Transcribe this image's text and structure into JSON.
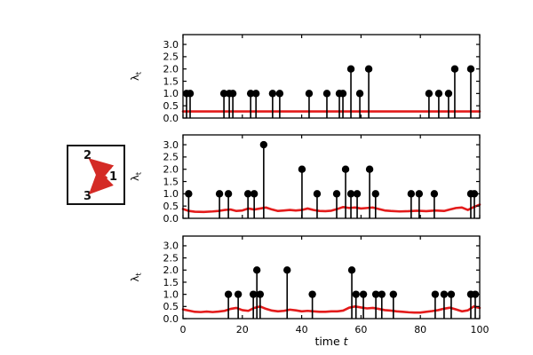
{
  "figure": {
    "background": "#ffffff",
    "axis_color": "#000000",
    "xlabel_text": "time ",
    "xlabel_var": "t",
    "ylabel_text": "λ",
    "ylabel_sub": "t"
  },
  "network_diagram": {
    "nodes": [
      {
        "id": "2"
      },
      {
        "id": "1"
      },
      {
        "id": "3"
      }
    ],
    "edges": [
      {
        "from": "1",
        "to": "2"
      },
      {
        "from": "1",
        "to": "3"
      }
    ],
    "arrow_color": "#d42b26"
  },
  "chart_data": [
    {
      "type": "stem",
      "name": "intensity-panel-1",
      "ylabel": "λ_t",
      "xlim": [
        0,
        100
      ],
      "ylim": [
        0,
        3.4
      ],
      "yticks": [
        "0.0",
        "0.5",
        "1.0",
        "1.5",
        "2.0",
        "2.5",
        "3.0"
      ],
      "ytick_values": [
        0,
        0.5,
        1,
        1.5,
        2,
        2.5,
        3
      ],
      "xticks": [
        "0",
        "20",
        "40",
        "60",
        "80",
        "100"
      ],
      "xtick_values": [
        0,
        20,
        40,
        60,
        80,
        100
      ],
      "show_xtick_labels": false,
      "stem_color": "#000000",
      "intensity_color": "#e31b1b",
      "events": {
        "x": [
          1.2,
          2.4,
          13.8,
          15.6,
          16.8,
          22.8,
          24.6,
          30.2,
          32.6,
          42.5,
          48.5,
          52.7,
          53.9,
          56.6,
          59.6,
          62.6,
          82.9,
          86.2,
          89.5,
          91.6,
          97.0
        ],
        "y": [
          1,
          1,
          1,
          1,
          1,
          1,
          1,
          1,
          1,
          1,
          1,
          1,
          1,
          2,
          1,
          2,
          1,
          1,
          1,
          2,
          2
        ]
      },
      "intensity": {
        "x": [
          0,
          100
        ],
        "y": [
          0.27,
          0.27
        ]
      }
    },
    {
      "type": "stem",
      "name": "intensity-panel-2",
      "ylabel": "λ_t",
      "xlim": [
        0,
        100
      ],
      "ylim": [
        0,
        3.4
      ],
      "yticks": [
        "0.0",
        "0.5",
        "1.0",
        "1.5",
        "2.0",
        "2.5",
        "3.0"
      ],
      "ytick_values": [
        0,
        0.5,
        1,
        1.5,
        2,
        2.5,
        3
      ],
      "xticks": [
        "0",
        "20",
        "40",
        "60",
        "80",
        "100"
      ],
      "xtick_values": [
        0,
        20,
        40,
        60,
        80,
        100
      ],
      "show_xtick_labels": false,
      "stem_color": "#000000",
      "intensity_color": "#e31b1b",
      "events": {
        "x": [
          1.9,
          12.3,
          15.3,
          21.9,
          24.0,
          27.2,
          40.1,
          45.2,
          51.8,
          54.8,
          56.6,
          58.7,
          62.9,
          64.9,
          76.9,
          79.6,
          84.7,
          97.0,
          98.2
        ],
        "y": [
          1,
          1,
          1,
          1,
          1,
          3,
          2,
          1,
          1,
          2,
          1,
          1,
          2,
          1,
          1,
          1,
          1,
          1,
          1
        ]
      },
      "intensity": {
        "x": [
          0,
          2,
          4,
          7,
          10,
          12,
          14,
          16,
          18,
          20,
          22,
          24,
          26,
          28,
          30,
          32,
          34,
          36,
          38,
          40,
          42,
          44,
          46,
          48,
          50,
          52,
          54,
          56,
          58,
          60,
          62,
          64,
          66,
          68,
          70,
          73,
          76,
          79,
          82,
          85,
          88,
          90,
          92,
          94,
          96,
          98,
          100
        ],
        "y": [
          0.38,
          0.3,
          0.27,
          0.26,
          0.28,
          0.3,
          0.34,
          0.36,
          0.3,
          0.32,
          0.4,
          0.36,
          0.4,
          0.44,
          0.36,
          0.3,
          0.32,
          0.34,
          0.32,
          0.34,
          0.4,
          0.34,
          0.3,
          0.29,
          0.31,
          0.38,
          0.46,
          0.42,
          0.44,
          0.4,
          0.42,
          0.44,
          0.38,
          0.32,
          0.3,
          0.28,
          0.29,
          0.31,
          0.29,
          0.32,
          0.3,
          0.36,
          0.42,
          0.44,
          0.34,
          0.46,
          0.56
        ]
      }
    },
    {
      "type": "stem",
      "name": "intensity-panel-3",
      "ylabel": "λ_t",
      "xlim": [
        0,
        100
      ],
      "ylim": [
        0,
        3.4
      ],
      "yticks": [
        "0.0",
        "0.5",
        "1.0",
        "1.5",
        "2.0",
        "2.5",
        "3.0"
      ],
      "ytick_values": [
        0,
        0.5,
        1,
        1.5,
        2,
        2.5,
        3
      ],
      "xticks": [
        "0",
        "20",
        "40",
        "60",
        "80",
        "100"
      ],
      "xtick_values": [
        0,
        20,
        40,
        60,
        80,
        100
      ],
      "show_xtick_labels": true,
      "stem_color": "#000000",
      "intensity_color": "#e31b1b",
      "events": {
        "x": [
          15.3,
          18.6,
          23.7,
          24.9,
          26.0,
          35.1,
          43.6,
          56.9,
          58.3,
          60.8,
          65.0,
          67.0,
          70.9,
          85.0,
          88.0,
          90.4,
          97.0,
          98.5
        ],
        "y": [
          1,
          1,
          1,
          2,
          1,
          2,
          1,
          2,
          1,
          1,
          1,
          1,
          1,
          1,
          1,
          1,
          1,
          1
        ]
      },
      "intensity": {
        "x": [
          0,
          2,
          4,
          6,
          8,
          10,
          12,
          14,
          16,
          18,
          20,
          22,
          24,
          26,
          28,
          30,
          32,
          34,
          36,
          38,
          40,
          42,
          44,
          46,
          48,
          50,
          52,
          54,
          56,
          58,
          60,
          62,
          64,
          66,
          68,
          70,
          72,
          74,
          76,
          78,
          80,
          82,
          84,
          86,
          88,
          90,
          92,
          94,
          96,
          98,
          100
        ],
        "y": [
          0.38,
          0.33,
          0.28,
          0.27,
          0.29,
          0.27,
          0.29,
          0.32,
          0.4,
          0.44,
          0.35,
          0.32,
          0.44,
          0.5,
          0.4,
          0.33,
          0.3,
          0.32,
          0.37,
          0.34,
          0.3,
          0.32,
          0.3,
          0.28,
          0.28,
          0.3,
          0.3,
          0.33,
          0.45,
          0.5,
          0.46,
          0.42,
          0.44,
          0.4,
          0.35,
          0.33,
          0.3,
          0.28,
          0.26,
          0.25,
          0.25,
          0.28,
          0.31,
          0.35,
          0.41,
          0.45,
          0.38,
          0.3,
          0.34,
          0.5,
          0.44
        ]
      }
    }
  ]
}
